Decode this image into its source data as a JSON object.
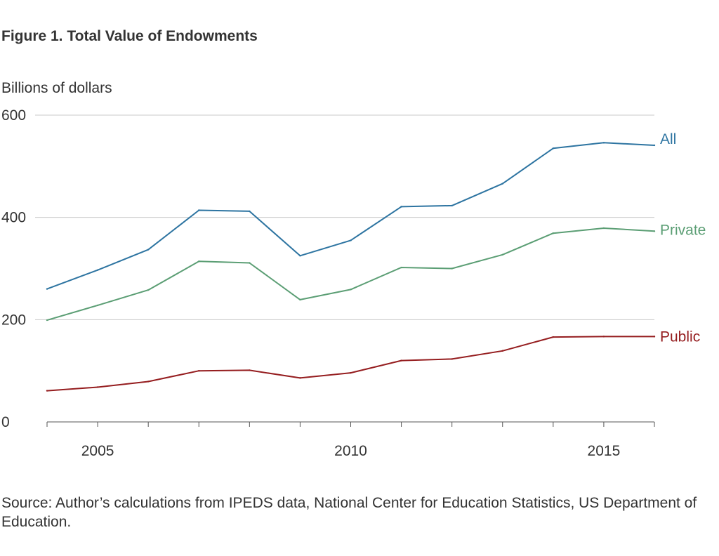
{
  "colors": {
    "all": "#2d74a1",
    "private": "#5b9e74",
    "public": "#951d1f",
    "grid": "#c8c8c8",
    "axis": "#555555"
  },
  "figure": {
    "title": "Figure 1. Total Value of Endowments",
    "source": "Source:  Author’s calculations from IPEDS data, National Center for Education Statistics, US Department of Education."
  },
  "chart_data": {
    "type": "line",
    "title": "Figure 1. Total Value of Endowments",
    "xlabel": "",
    "ylabel": "Billions of dollars",
    "x": [
      2004,
      2005,
      2006,
      2007,
      2008,
      2009,
      2010,
      2011,
      2012,
      2013,
      2014,
      2015,
      2016
    ],
    "xticks": [
      2005,
      2010,
      2015
    ],
    "xlim": [
      2004,
      2016
    ],
    "yticks": [
      0,
      200,
      400,
      600
    ],
    "ylim": [
      0,
      600
    ],
    "grid": "horizontal",
    "series": [
      {
        "name": "All",
        "key": "all",
        "values": [
          260,
          297,
          337,
          414,
          412,
          325,
          355,
          421,
          423,
          466,
          535,
          546,
          541
        ]
      },
      {
        "name": "Private",
        "key": "private",
        "values": [
          199,
          228,
          258,
          314,
          311,
          239,
          259,
          302,
          300,
          327,
          369,
          379,
          373
        ]
      },
      {
        "name": "Public",
        "key": "public",
        "values": [
          61,
          68,
          79,
          100,
          101,
          86,
          96,
          120,
          123,
          139,
          166,
          167,
          167
        ]
      }
    ]
  }
}
